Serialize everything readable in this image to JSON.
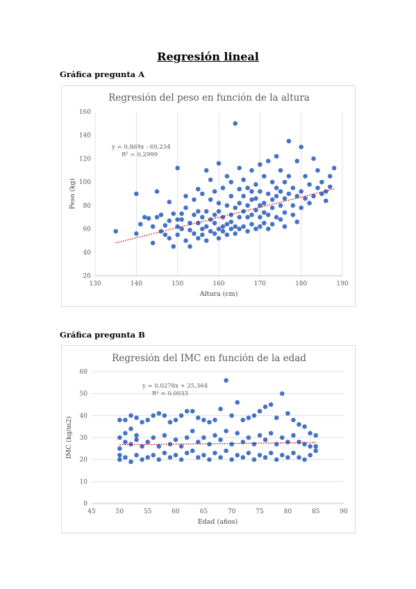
{
  "page": {
    "title": "Regresión lineal",
    "section_a": "Gráfica pregunta A",
    "section_b": "Gráfica pregunta B"
  },
  "colors": {
    "points": "#4472c4",
    "trendline": "#c00000",
    "grid": "#d9d9d9",
    "text": "#595959"
  },
  "chart_data": [
    {
      "type": "scatter",
      "title": "Regresión del peso en función de la altura",
      "xlabel": "Altura (cm)",
      "ylabel": "Peso (kg)",
      "xlim": [
        130,
        190
      ],
      "ylim": [
        20,
        160
      ],
      "xticks": [
        130,
        140,
        150,
        160,
        170,
        180,
        190
      ],
      "yticks": [
        20,
        40,
        60,
        80,
        100,
        120,
        140,
        160
      ],
      "grid": "vertical",
      "legend": "none",
      "trendline": {
        "slope": 0.869,
        "intercept": -69.234,
        "x_range": [
          135,
          188
        ],
        "style": "dotted"
      },
      "annotations": [
        "y = 0,869x - 69,234",
        "R² = 0,2999"
      ],
      "series": [
        {
          "x": [
            135,
            140,
            140,
            141,
            142,
            143,
            144,
            144,
            145,
            145,
            146,
            146,
            147,
            147,
            148,
            148,
            148,
            149,
            149,
            150,
            150,
            150,
            150,
            151,
            151,
            151,
            152,
            152,
            152,
            153,
            153,
            153,
            154,
            154,
            154,
            155,
            155,
            155,
            155,
            156,
            156,
            156,
            156,
            157,
            157,
            157,
            157,
            158,
            158,
            158,
            158,
            159,
            159,
            159,
            159,
            160,
            160,
            160,
            160,
            160,
            161,
            161,
            161,
            161,
            162,
            162,
            162,
            162,
            163,
            163,
            163,
            163,
            163,
            164,
            164,
            164,
            164,
            165,
            165,
            165,
            165,
            165,
            166,
            166,
            166,
            166,
            167,
            167,
            167,
            167,
            168,
            168,
            168,
            168,
            168,
            169,
            169,
            169,
            169,
            170,
            170,
            170,
            170,
            170,
            171,
            171,
            171,
            171,
            172,
            172,
            172,
            172,
            173,
            173,
            173,
            173,
            174,
            174,
            174,
            174,
            175,
            175,
            175,
            175,
            176,
            176,
            176,
            176,
            177,
            177,
            177,
            178,
            178,
            178,
            179,
            179,
            179,
            180,
            180,
            180,
            181,
            181,
            182,
            182,
            183,
            183,
            184,
            184,
            185,
            185,
            186,
            186,
            187,
            187,
            188
          ],
          "y": [
            58,
            90,
            56,
            64,
            70,
            69,
            48,
            62,
            92,
            70,
            58,
            72,
            55,
            63,
            67,
            52,
            83,
            45,
            73,
            112,
            55,
            62,
            68,
            68,
            73,
            60,
            50,
            78,
            88,
            65,
            59,
            45,
            72,
            85,
            56,
            94,
            65,
            52,
            75,
            90,
            60,
            70,
            55,
            110,
            62,
            75,
            50,
            102,
            58,
            68,
            85,
            65,
            72,
            56,
            92,
            116,
            60,
            75,
            82,
            52,
            95,
            70,
            62,
            58,
            80,
            64,
            105,
            55,
            88,
            72,
            60,
            100,
            66,
            150,
            78,
            62,
            56,
            112,
            82,
            70,
            60,
            94,
            75,
            88,
            62,
            102,
            80,
            58,
            95,
            70,
            110,
            85,
            64,
            72,
            92,
            98,
            76,
            60,
            86,
            115,
            80,
            70,
            62,
            92,
            105,
            82,
            74,
            65,
            118,
            90,
            72,
            60,
            85,
            100,
            64,
            78,
            122,
            88,
            70,
            95,
            110,
            80,
            68,
            92,
            100,
            86,
            74,
            62,
            135,
            90,
            105,
            80,
            72,
            95,
            118,
            88,
            66,
            130,
            92,
            78,
            105,
            86,
            98,
            82,
            120,
            88,
            95,
            110,
            90,
            100,
            92,
            84,
            105,
            96,
            112
          ]
        }
      ]
    },
    {
      "type": "scatter",
      "title": "Regresión del IMC en función de la edad",
      "xlabel": "Edad (años)",
      "ylabel": "IMC (kg/m2)",
      "xlim": [
        45,
        90
      ],
      "ylim": [
        0,
        60
      ],
      "xticks": [
        45,
        50,
        55,
        60,
        65,
        70,
        75,
        80,
        85,
        90
      ],
      "yticks": [
        0,
        10,
        20,
        30,
        40,
        50,
        60
      ],
      "grid": "horizontal",
      "legend": "none",
      "trendline": {
        "slope": 0.0278,
        "intercept": 25.364,
        "x_range": [
          50,
          85
        ],
        "style": "dotted"
      },
      "annotations": [
        "y = 0,0278x + 25,364",
        "R² = 0,0033"
      ],
      "series": [
        {
          "x": [
            50,
            50,
            50,
            50,
            50,
            51,
            51,
            51,
            51,
            52,
            52,
            52,
            52,
            53,
            53,
            53,
            53,
            54,
            54,
            54,
            55,
            55,
            55,
            56,
            56,
            56,
            57,
            57,
            57,
            58,
            58,
            58,
            59,
            59,
            59,
            60,
            60,
            60,
            61,
            61,
            61,
            62,
            62,
            62,
            63,
            63,
            63,
            64,
            64,
            64,
            65,
            65,
            65,
            66,
            66,
            66,
            67,
            67,
            67,
            68,
            68,
            68,
            69,
            69,
            69,
            70,
            70,
            70,
            71,
            71,
            71,
            72,
            72,
            72,
            73,
            73,
            73,
            74,
            74,
            74,
            75,
            75,
            75,
            76,
            76,
            76,
            77,
            77,
            77,
            78,
            78,
            78,
            79,
            79,
            79,
            80,
            80,
            80,
            81,
            81,
            81,
            82,
            82,
            82,
            83,
            83,
            83,
            84,
            84,
            84,
            85,
            85,
            85
          ],
          "y": [
            38,
            30,
            25,
            22,
            20,
            38,
            28,
            21,
            32,
            40,
            27,
            19,
            34,
            39,
            29,
            22,
            31,
            37,
            26,
            20,
            38,
            28,
            21,
            40,
            30,
            22,
            41,
            26,
            20,
            40,
            31,
            23,
            37,
            27,
            21,
            38,
            29,
            22,
            40,
            26,
            20,
            42,
            30,
            23,
            42,
            33,
            24,
            39,
            28,
            21,
            38,
            30,
            22,
            37,
            27,
            20,
            38,
            31,
            23,
            43,
            29,
            21,
            56,
            33,
            24,
            40,
            27,
            20,
            46,
            32,
            22,
            38,
            28,
            21,
            39,
            30,
            23,
            40,
            27,
            20,
            42,
            31,
            22,
            44,
            29,
            21,
            45,
            32,
            23,
            39,
            27,
            20,
            50,
            30,
            22,
            41,
            28,
            21,
            38,
            31,
            23,
            36,
            28,
            21,
            35,
            27,
            20,
            32,
            26,
            22,
            31,
            26,
            24
          ]
        }
      ]
    }
  ]
}
